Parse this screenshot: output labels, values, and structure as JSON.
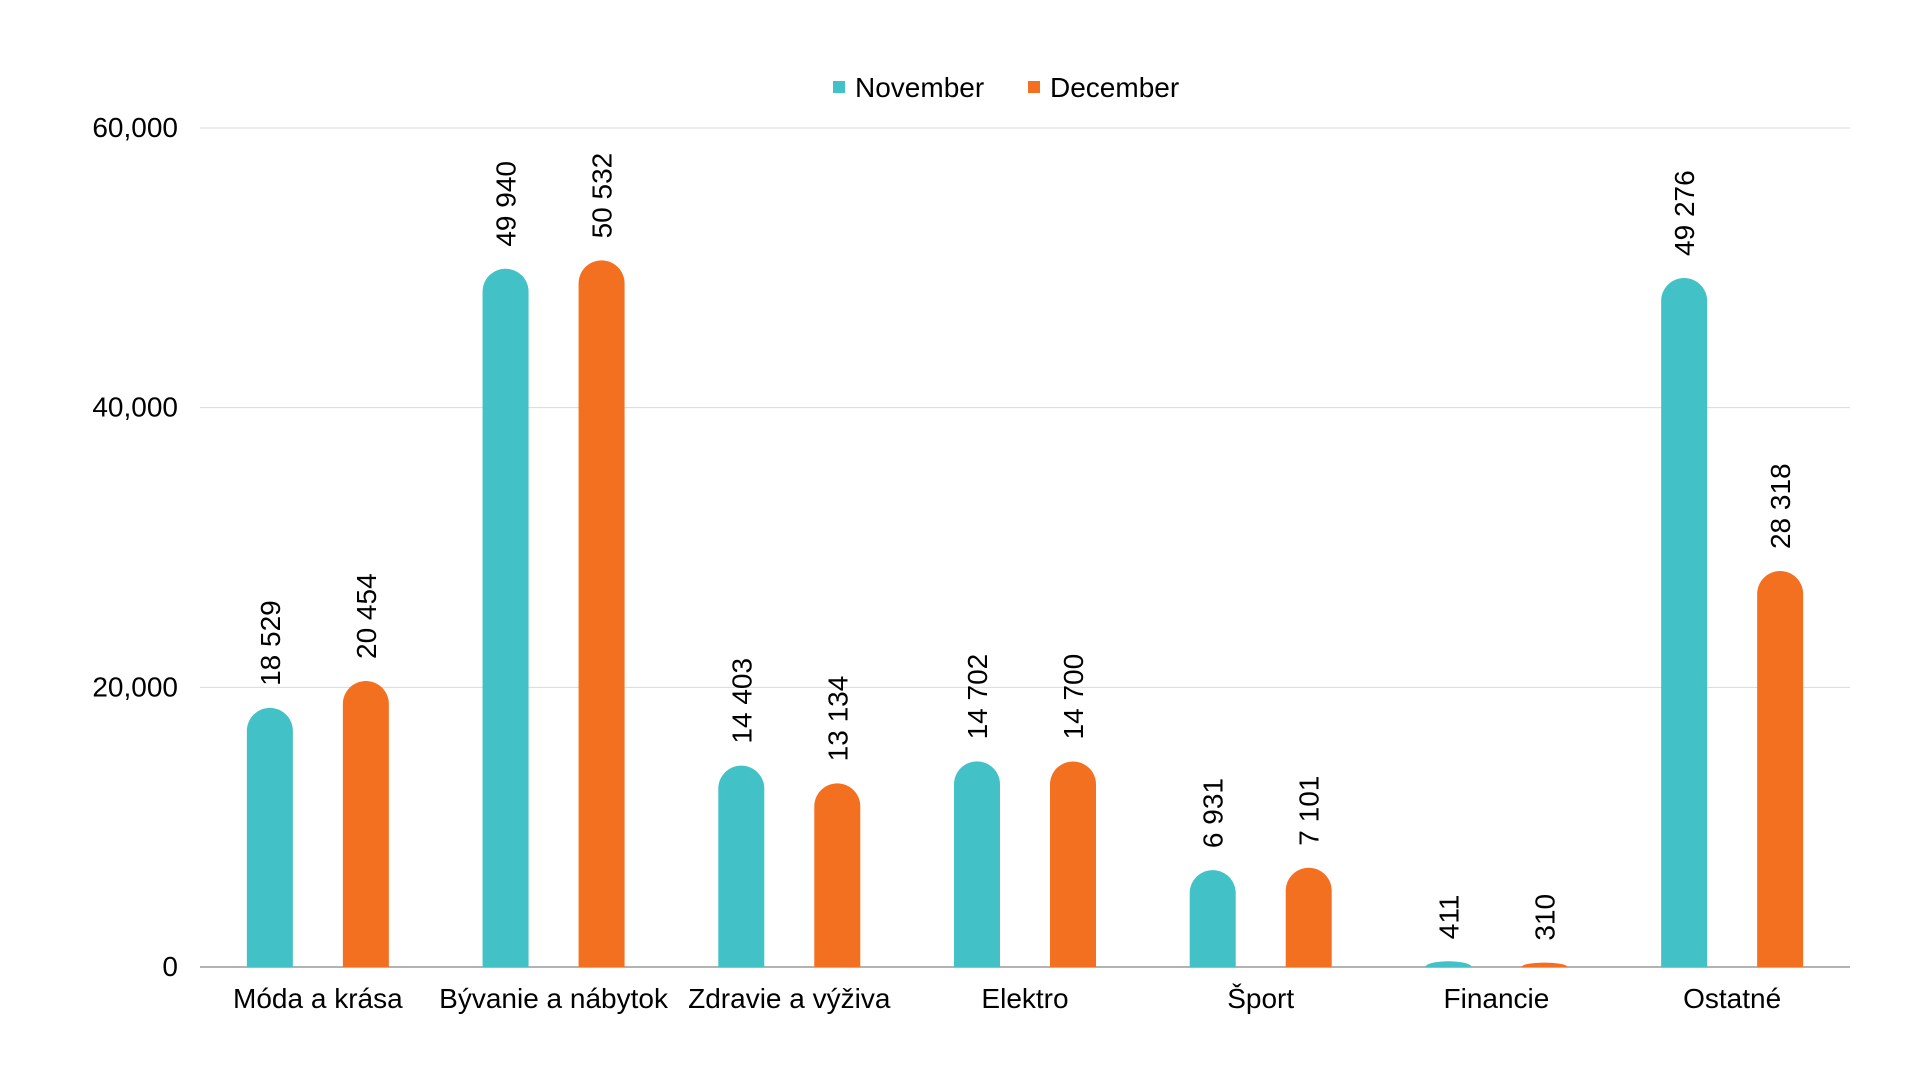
{
  "chart_data": {
    "type": "bar",
    "title": "",
    "xlabel": "",
    "ylabel": "",
    "ylim": [
      0,
      60000
    ],
    "yticks": [
      0,
      20000,
      40000,
      60000
    ],
    "ytick_labels": [
      "0",
      "20,000",
      "40,000",
      "60,000"
    ],
    "grid": true,
    "legend_position": "top-center",
    "categories": [
      "Móda a krása",
      "Bývanie a nábytok",
      "Zdravie a výživa",
      "Elektro",
      "Šport",
      "Financie",
      "Ostatné"
    ],
    "series": [
      {
        "name": "November",
        "color": "#42c1c6",
        "values": [
          18529,
          49940,
          14403,
          14702,
          6931,
          411,
          49276
        ],
        "labels": [
          "18 529",
          "49 940",
          "14 403",
          "14 702",
          "6 931",
          "411",
          "49 276"
        ]
      },
      {
        "name": "December",
        "color": "#f37021",
        "values": [
          20454,
          50532,
          13134,
          14700,
          7101,
          310,
          28318
        ],
        "labels": [
          "20 454",
          "50 532",
          "13 134",
          "14 700",
          "7 101",
          "310",
          "28 318"
        ]
      }
    ]
  }
}
